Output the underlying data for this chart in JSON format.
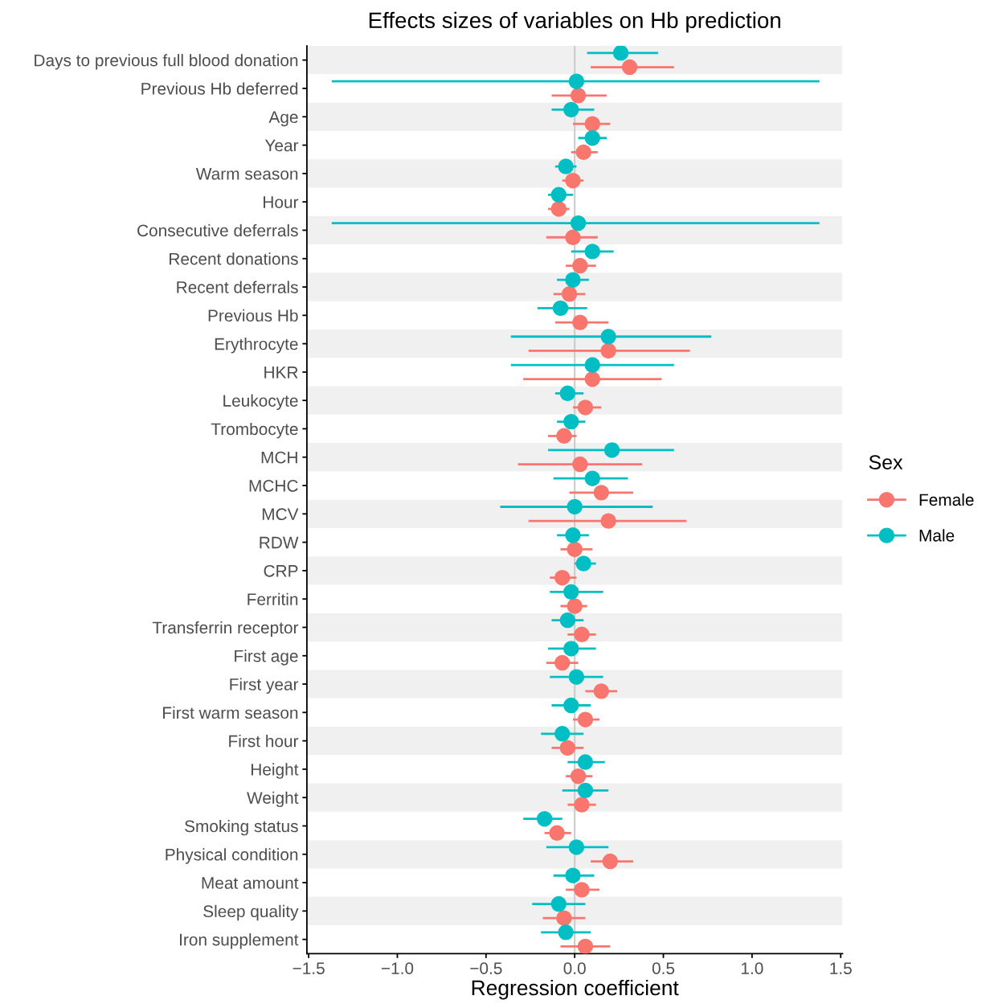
{
  "chart_data": {
    "type": "scatter",
    "orientation": "horizontal",
    "title": "Effects sizes of variables on Hb prediction",
    "xlabel": "Regression coefficient",
    "legend_title": "Sex",
    "legend": "right",
    "marker": "circle",
    "grid": false,
    "categories": [
      "Days to previous full blood donation",
      "Previous Hb deferred",
      "Age",
      "Year",
      "Warm season",
      "Hour",
      "Consecutive deferrals",
      "Recent donations",
      "Recent deferrals",
      "Previous Hb",
      "Erythrocyte",
      "HKR",
      "Leukocyte",
      "Trombocyte",
      "MCH",
      "MCHC",
      "MCV",
      "RDW",
      "CRP",
      "Ferritin",
      "Transferrin receptor",
      "First age",
      "First year",
      "First warm season",
      "First hour",
      "Height",
      "Weight",
      "Smoking status",
      "Physical condition",
      "Meat amount",
      "Sleep quality",
      "Iron supplement"
    ],
    "xlim": [
      -1.51,
      1.51
    ],
    "xticks": [
      {
        "value": -1.5,
        "label": "−1.5"
      },
      {
        "value": -1.0,
        "label": "−1.0"
      },
      {
        "value": -0.5,
        "label": "−0.5"
      },
      {
        "value": 0.0,
        "label": "0.0"
      },
      {
        "value": 0.5,
        "label": "0.5"
      },
      {
        "value": 1.0,
        "label": "1.0"
      },
      {
        "value": 1.5,
        "label": "1.5"
      }
    ],
    "ref_lines": [
      {
        "axis": "x",
        "value": 0,
        "color": "#cccccc"
      }
    ],
    "series": [
      {
        "name": "Female",
        "color": "#f8766d",
        "values": [
          0.31,
          0.02,
          0.1,
          0.05,
          -0.01,
          -0.09,
          -0.01,
          0.03,
          -0.03,
          0.03,
          0.19,
          0.1,
          0.06,
          -0.06,
          0.03,
          0.15,
          0.19,
          0.0,
          -0.07,
          0.0,
          0.04,
          -0.07,
          0.15,
          0.06,
          -0.04,
          0.02,
          0.04,
          -0.1,
          0.2,
          0.04,
          -0.06,
          0.06
        ],
        "errors": [
          [
            0.09,
            0.56
          ],
          [
            -0.13,
            0.18
          ],
          [
            -0.01,
            0.2
          ],
          [
            -0.02,
            0.13
          ],
          [
            -0.07,
            0.05
          ],
          [
            -0.15,
            -0.03
          ],
          [
            -0.16,
            0.13
          ],
          [
            -0.05,
            0.12
          ],
          [
            -0.12,
            0.06
          ],
          [
            -0.11,
            0.19
          ],
          [
            -0.26,
            0.65
          ],
          [
            -0.29,
            0.49
          ],
          [
            -0.01,
            0.15
          ],
          [
            -0.15,
            0.01
          ],
          [
            -0.32,
            0.38
          ],
          [
            -0.03,
            0.33
          ],
          [
            -0.26,
            0.63
          ],
          [
            -0.08,
            0.1
          ],
          [
            -0.14,
            0.01
          ],
          [
            -0.08,
            0.07
          ],
          [
            -0.04,
            0.12
          ],
          [
            -0.16,
            0.02
          ],
          [
            0.06,
            0.24
          ],
          [
            -0.01,
            0.14
          ],
          [
            -0.13,
            0.05
          ],
          [
            -0.05,
            0.1
          ],
          [
            -0.04,
            0.12
          ],
          [
            -0.17,
            -0.02
          ],
          [
            0.09,
            0.33
          ],
          [
            -0.05,
            0.14
          ],
          [
            -0.18,
            0.06
          ],
          [
            -0.08,
            0.2
          ]
        ]
      },
      {
        "name": "Male",
        "color": "#00bfc4",
        "values": [
          0.26,
          0.01,
          -0.02,
          0.1,
          -0.05,
          -0.09,
          0.02,
          0.1,
          -0.01,
          -0.08,
          0.19,
          0.1,
          -0.04,
          -0.02,
          0.21,
          0.1,
          0.0,
          -0.01,
          0.05,
          -0.02,
          -0.04,
          -0.02,
          0.01,
          -0.02,
          -0.07,
          0.06,
          0.06,
          -0.17,
          0.01,
          -0.01,
          -0.09,
          -0.05
        ],
        "errors": [
          [
            0.07,
            0.47
          ],
          [
            -1.37,
            1.38
          ],
          [
            -0.13,
            0.11
          ],
          [
            0.02,
            0.18
          ],
          [
            -0.11,
            0.01
          ],
          [
            -0.15,
            -0.01
          ],
          [
            -1.37,
            1.38
          ],
          [
            -0.02,
            0.22
          ],
          [
            -0.1,
            0.08
          ],
          [
            -0.21,
            0.07
          ],
          [
            -0.36,
            0.77
          ],
          [
            -0.36,
            0.56
          ],
          [
            -0.11,
            0.05
          ],
          [
            -0.1,
            0.06
          ],
          [
            -0.15,
            0.56
          ],
          [
            -0.12,
            0.3
          ],
          [
            -0.42,
            0.44
          ],
          [
            -0.1,
            0.08
          ],
          [
            0.0,
            0.12
          ],
          [
            -0.14,
            0.16
          ],
          [
            -0.13,
            0.05
          ],
          [
            -0.15,
            0.12
          ],
          [
            -0.14,
            0.16
          ],
          [
            -0.13,
            0.09
          ],
          [
            -0.19,
            0.05
          ],
          [
            -0.04,
            0.17
          ],
          [
            -0.07,
            0.19
          ],
          [
            -0.29,
            -0.07
          ],
          [
            -0.16,
            0.19
          ],
          [
            -0.12,
            0.11
          ],
          [
            -0.24,
            0.06
          ],
          [
            -0.19,
            0.09
          ]
        ]
      }
    ]
  }
}
